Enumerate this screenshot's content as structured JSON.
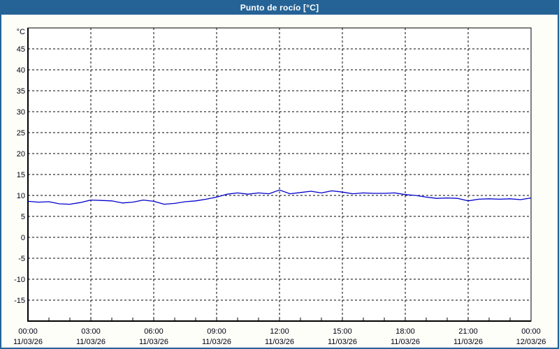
{
  "window": {
    "title": "Punto de rocío [°C]"
  },
  "colors": {
    "titlebar": "#256396",
    "border": "#256396",
    "background": "#fdfef8",
    "plot_background": "#ffffff",
    "grid": "#000000",
    "axis": "#000000",
    "line": "#0000cc",
    "label_text": "#000011"
  },
  "chart_data": {
    "type": "line",
    "title": "Punto de rocío [°C]",
    "ylabel": "°C",
    "ylim": [
      -20,
      50
    ],
    "ytick_step": 5,
    "ytick_labels": [
      -15,
      -10,
      -5,
      0,
      5,
      10,
      15,
      20,
      25,
      30,
      35,
      40,
      45
    ],
    "xlim_hours": [
      0,
      24
    ],
    "x_major_step_hours": 3,
    "x_minor_step_hours": 1,
    "grid_style": "dashed",
    "legend_position": "none",
    "xticks": [
      {
        "time": "00:00",
        "date": "11/03/26"
      },
      {
        "time": "03:00",
        "date": "11/03/26"
      },
      {
        "time": "06:00",
        "date": "11/03/26"
      },
      {
        "time": "09:00",
        "date": "11/03/26"
      },
      {
        "time": "12:00",
        "date": "11/03/26"
      },
      {
        "time": "15:00",
        "date": "11/03/26"
      },
      {
        "time": "18:00",
        "date": "11/03/26"
      },
      {
        "time": "21:00",
        "date": "11/03/26"
      },
      {
        "time": "00:00",
        "date": "12/03/26"
      }
    ],
    "series": [
      {
        "name": "Punto de rocío",
        "color": "#0000cc",
        "points": [
          [
            0,
            8.6
          ],
          [
            0.5,
            8.4
          ],
          [
            1,
            8.5
          ],
          [
            1.5,
            8.0
          ],
          [
            2,
            7.9
          ],
          [
            2.5,
            8.3
          ],
          [
            3,
            8.9
          ],
          [
            3.5,
            8.8
          ],
          [
            4,
            8.7
          ],
          [
            4.5,
            8.2
          ],
          [
            5,
            8.4
          ],
          [
            5.5,
            8.9
          ],
          [
            6,
            8.6
          ],
          [
            6.5,
            7.9
          ],
          [
            7,
            8.1
          ],
          [
            7.5,
            8.5
          ],
          [
            8,
            8.7
          ],
          [
            8.5,
            9.1
          ],
          [
            9,
            9.6
          ],
          [
            9.5,
            10.3
          ],
          [
            10,
            10.6
          ],
          [
            10.5,
            10.3
          ],
          [
            11,
            10.6
          ],
          [
            11.5,
            10.4
          ],
          [
            12,
            11.3
          ],
          [
            12.5,
            10.4
          ],
          [
            13,
            10.7
          ],
          [
            13.5,
            11.0
          ],
          [
            14,
            10.6
          ],
          [
            14.5,
            11.1
          ],
          [
            15,
            10.8
          ],
          [
            15.5,
            10.4
          ],
          [
            16,
            10.6
          ],
          [
            16.5,
            10.5
          ],
          [
            17,
            10.5
          ],
          [
            17.5,
            10.6
          ],
          [
            18,
            10.2
          ],
          [
            18.5,
            10.0
          ],
          [
            19,
            9.6
          ],
          [
            19.5,
            9.3
          ],
          [
            20,
            9.4
          ],
          [
            20.5,
            9.3
          ],
          [
            21,
            8.7
          ],
          [
            21.5,
            9.1
          ],
          [
            22,
            9.2
          ],
          [
            22.5,
            9.1
          ],
          [
            23,
            9.2
          ],
          [
            23.5,
            9.0
          ],
          [
            24,
            9.4
          ]
        ]
      }
    ]
  }
}
